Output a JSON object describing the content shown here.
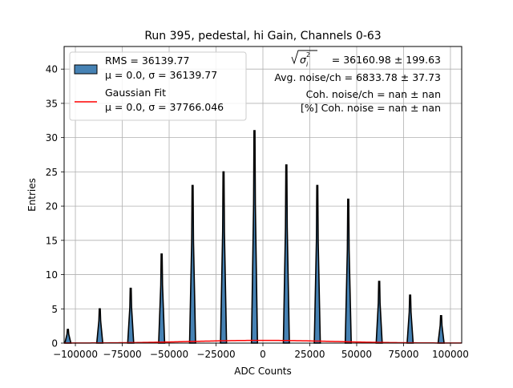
{
  "chart_data": {
    "type": "bar",
    "title": "Run 395, pedestal, hi Gain, Channels 0-63",
    "xlabel": "ADC Counts",
    "ylabel": "Entries",
    "xlim": [
      -106000,
      106000
    ],
    "ylim": [
      0,
      43.3
    ],
    "grid": true,
    "legend_position": "top-left",
    "xticks": [
      -100000,
      -75000,
      -50000,
      -25000,
      0,
      25000,
      50000,
      75000,
      100000
    ],
    "xtick_labels": [
      "−100000",
      "−75000",
      "−50000",
      "−25000",
      "0",
      "25000",
      "50000",
      "75000",
      "100000"
    ],
    "yticks": [
      0,
      5,
      10,
      15,
      20,
      25,
      30,
      35,
      40
    ],
    "ytick_labels": [
      "0",
      "5",
      "10",
      "15",
      "20",
      "25",
      "30",
      "35",
      "40"
    ],
    "histogram_peaks": [
      {
        "x": -104000,
        "entries": 2
      },
      {
        "x": -87000,
        "entries": 5
      },
      {
        "x": -70500,
        "entries": 8
      },
      {
        "x": -54000,
        "entries": 13
      },
      {
        "x": -37500,
        "entries": 23
      },
      {
        "x": -21000,
        "entries": 25
      },
      {
        "x": -4500,
        "entries": 31
      },
      {
        "x": 12500,
        "entries": 26
      },
      {
        "x": 29000,
        "entries": 23
      },
      {
        "x": 45500,
        "entries": 21
      },
      {
        "x": 62000,
        "entries": 9
      },
      {
        "x": 78500,
        "entries": 7
      },
      {
        "x": 95000,
        "entries": 4
      }
    ],
    "gaussian_fit": {
      "mu": 0.0,
      "sigma": 37766.046,
      "peak_entries": 0.4
    },
    "series": [
      {
        "name": "RMS = 36139.77",
        "subtitle": "μ = 0.0, σ = 36139.77",
        "color": "#4682b4",
        "edge_color": "#000000"
      },
      {
        "name": "Gaussian Fit",
        "subtitle": "μ = 0.0, σ = 37766.046",
        "color": "#ff0000"
      }
    ],
    "annotations": {
      "line1_rest": " = 36160.98 ± 199.63",
      "line2": "Avg. noise/ch = 6833.78 ± 37.73",
      "line3": "Coh. noise/ch = nan ± nan",
      "line4": "[%] Coh. noise = nan ± nan"
    }
  },
  "colors": {
    "bar_fill": "#4682b4",
    "bar_edge": "#000000",
    "fit_line": "#ff0000",
    "grid": "#b0b0b0"
  }
}
